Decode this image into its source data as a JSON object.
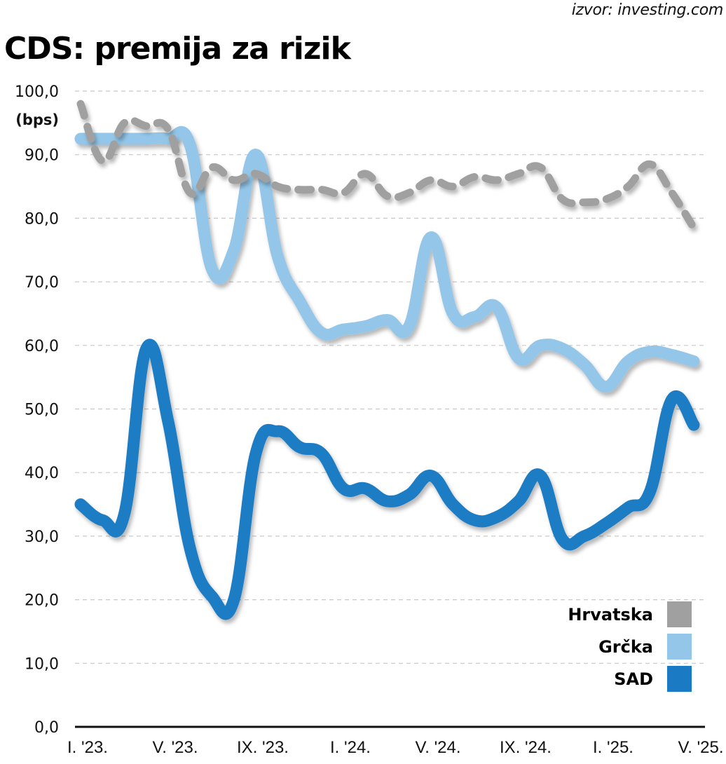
{
  "source": "izvor: investing.com",
  "title": "CDS: premija za rizik",
  "chart_data": {
    "type": "line",
    "title": "CDS: premija za rizik",
    "xlabel": "",
    "ylabel": "(bps)",
    "ylim": [
      0,
      100
    ],
    "y_ticks": [
      "0,0",
      "10,0",
      "20,0",
      "30,0",
      "40,0",
      "50,0",
      "60,0",
      "70,0",
      "80,0",
      "90,0",
      "100,0"
    ],
    "y_tick_values": [
      0,
      10,
      20,
      30,
      40,
      50,
      60,
      70,
      80,
      90,
      100
    ],
    "x_tick_labels": [
      "I. '23.",
      "V. '23.",
      "IX. '23.",
      "I. '24.",
      "V. '24.",
      "IX. '24.",
      "I. '25.",
      "V. '25."
    ],
    "x_tick_indices": [
      0,
      4,
      8,
      12,
      16,
      20,
      24,
      28
    ],
    "x": [
      "2023-01",
      "2023-02",
      "2023-03",
      "2023-04",
      "2023-05",
      "2023-06",
      "2023-07",
      "2023-08",
      "2023-09",
      "2023-10",
      "2023-11",
      "2023-12",
      "2024-01",
      "2024-02",
      "2024-03",
      "2024-04",
      "2024-05",
      "2024-06",
      "2024-07",
      "2024-08",
      "2024-09",
      "2024-10",
      "2024-11",
      "2024-12",
      "2025-01",
      "2025-02",
      "2025-03",
      "2025-04",
      "2025-05"
    ],
    "grid": true,
    "legend_position": "bottom-right",
    "series": [
      {
        "name": "Hrvatska",
        "color": "#a0a0a0",
        "style": "dashed",
        "values": [
          98,
          89,
          95,
          94.5,
          94,
          84,
          88,
          86,
          87,
          85,
          84.5,
          84.5,
          84,
          87,
          83.5,
          84,
          86,
          85,
          86.5,
          86,
          87,
          88,
          83,
          82.5,
          83,
          85,
          88.5,
          84,
          78.5
        ]
      },
      {
        "name": "Grčka",
        "color": "#93c6e8",
        "style": "solid",
        "values": [
          92.5,
          92.5,
          92.5,
          92.5,
          92.5,
          91.5,
          72,
          75,
          90,
          74,
          67,
          62,
          62.5,
          63,
          64,
          63,
          77,
          65,
          64.5,
          66,
          58,
          60,
          59.5,
          57,
          53.5,
          57.5,
          59,
          58.5,
          57.5
        ]
      },
      {
        "name": "SAD",
        "color": "#1a7bc4",
        "style": "solid",
        "values": [
          35,
          32.5,
          33.5,
          59.5,
          48,
          28,
          20.5,
          20,
          43,
          46.5,
          44,
          43,
          37.5,
          37.5,
          35.5,
          36.5,
          39.5,
          35,
          32.5,
          33,
          35.5,
          39.5,
          29.5,
          30,
          32,
          34.5,
          37,
          51.5,
          47.5
        ]
      }
    ]
  }
}
